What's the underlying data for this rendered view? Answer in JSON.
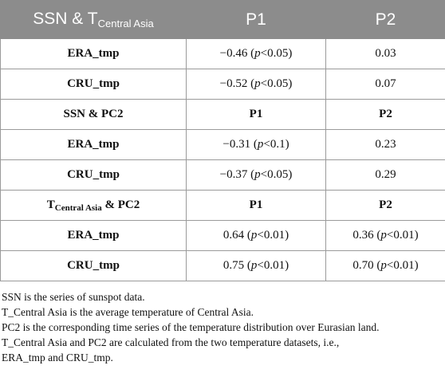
{
  "header": {
    "col1_prefix": "SSN & T",
    "col1_sub": "Central Asia",
    "col2": "P1",
    "col3": "P2"
  },
  "section1": {
    "rows": [
      {
        "label": "ERA_tmp",
        "p1_value": "−0.46",
        "p1_sig": "<0.05",
        "p2_value": "0.03"
      },
      {
        "label": "CRU_tmp",
        "p1_value": "−0.52",
        "p1_sig": "<0.05",
        "p2_value": "0.07"
      }
    ]
  },
  "section2": {
    "header_label": "SSN & PC2",
    "col2": "P1",
    "col3": "P2",
    "rows": [
      {
        "label": "ERA_tmp",
        "p1_value": "−0.31",
        "p1_sig": "<0.1",
        "p2_value": "0.23"
      },
      {
        "label": "CRU_tmp",
        "p1_value": "−0.37",
        "p1_sig": "<0.05",
        "p2_value": "0.29"
      }
    ]
  },
  "section3": {
    "header_prefix": "T",
    "header_sub": "Central Asia",
    "header_suffix": " & PC2",
    "col2": "P1",
    "col3": "P2",
    "rows": [
      {
        "label": "ERA_tmp",
        "p1_value": "0.64",
        "p1_sig": "<0.01",
        "p2_value": "0.36",
        "p2_sig": "<0.01"
      },
      {
        "label": "CRU_tmp",
        "p1_value": "0.75",
        "p1_sig": "<0.01",
        "p2_value": "0.70",
        "p2_sig": "<0.01"
      }
    ]
  },
  "p_symbol": "p",
  "notes": [
    "SSN is the series of sunspot data.",
    "T_Central Asia is the average temperature of Central Asia.",
    "PC2 is the corresponding time series of the temperature distribution over Eurasian land.",
    "T_Central Asia and PC2 are calculated from the two temperature datasets, i.e.,",
    "ERA_tmp and CRU_tmp."
  ]
}
